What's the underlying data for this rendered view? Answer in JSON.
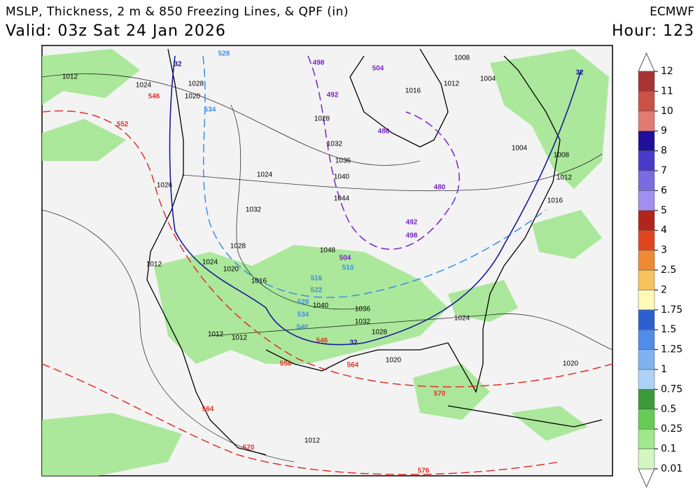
{
  "header": {
    "title": "MSLP, Thickness, 2 m & 850 Freezing Lines, & QPF (in)",
    "model": "ECMWF",
    "valid": "Valid: 03z Sat 24 Jan 2026",
    "hour": "Hour: 123"
  },
  "colorbar": {
    "labels": [
      "0.01",
      "0.1",
      "0.25",
      "0.5",
      "0.75",
      "1",
      "1.25",
      "1.5",
      "1.75",
      "2",
      "2.5",
      "3",
      "4",
      "5",
      "6",
      "7",
      "8",
      "9",
      "10",
      "11",
      "12"
    ],
    "colors": [
      "#d2f7c3",
      "#9fe88c",
      "#66cc55",
      "#3c9a3a",
      "#add2f6",
      "#7eb2f0",
      "#4f8de6",
      "#2c60cf",
      "#fffab5",
      "#f6c35c",
      "#ef8a33",
      "#e1461f",
      "#b3241a",
      "#a08ff0",
      "#7b6be0",
      "#4b3bc9",
      "#1f109a",
      "#e07c72",
      "#c95148",
      "#a93232"
    ]
  },
  "map": {
    "isobar_labels": {
      "color": "#000000",
      "labels": [
        "1012",
        "1024",
        "1028",
        "1020",
        "1008",
        "1004",
        "1016",
        "1012",
        "1028",
        "1032",
        "1036",
        "1040",
        "1044",
        "1024",
        "1026",
        "1032",
        "1028",
        "1024",
        "1020",
        "1016",
        "1040",
        "1048",
        "1036",
        "1032",
        "1028",
        "1024",
        "1020",
        "1020",
        "1012",
        "1012",
        "1012",
        "1012",
        "1004",
        "1008",
        "1012",
        "1016"
      ]
    },
    "warm_thickness_labels": {
      "color": "#e0302a",
      "labels": [
        "546",
        "552",
        "546",
        "558",
        "564",
        "570",
        "564",
        "570",
        "576"
      ]
    },
    "cold_thickness_labels": {
      "color": "#7a22c8",
      "labels": [
        "498",
        "504",
        "492",
        "486",
        "480",
        "492",
        "498",
        "504"
      ]
    },
    "mid_thickness_labels": {
      "color": "#3a8ee8",
      "labels": [
        "528",
        "534",
        "510",
        "516",
        "522",
        "528",
        "534",
        "540"
      ]
    },
    "freezing_labels": {
      "color": "#1a1a9a",
      "labels": [
        "32",
        "32",
        "32"
      ]
    }
  }
}
